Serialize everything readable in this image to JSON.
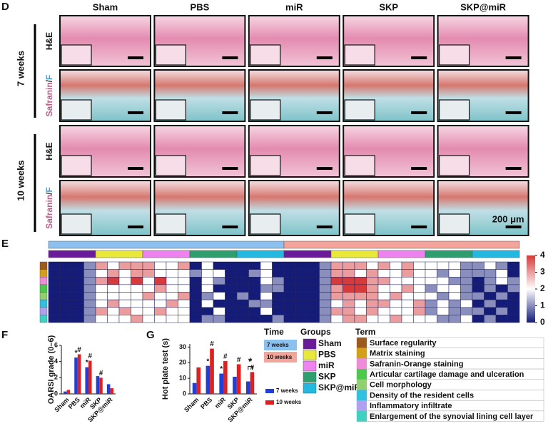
{
  "panel_d": {
    "label": "D",
    "columns": [
      "Sham",
      "PBS",
      "miR",
      "SKP",
      "SKP@miR"
    ],
    "times": [
      "7 weeks",
      "10 weeks"
    ],
    "stains": [
      {
        "parts": [
          "H&E"
        ],
        "colors": [
          "#111111"
        ]
      },
      {
        "parts": [
          "Safranin",
          "/",
          "F"
        ],
        "colors": [
          "#c25a86",
          "#333333",
          "#3fa3d9"
        ]
      }
    ],
    "scale_bar": "200 μm"
  },
  "chart_data": [
    {
      "type": "heatmap",
      "label": "E",
      "clim": [
        0,
        4
      ],
      "cticks": [
        0,
        1,
        2,
        3,
        4
      ],
      "colors": [
        "#141c78",
        "#ffffff",
        "#d63a3a"
      ],
      "time": {
        "title": "Time",
        "names": [
          "7 weeks",
          "10 weeks"
        ],
        "colors": [
          "#8cc1ef",
          "#f3a49b"
        ]
      },
      "groups": {
        "title": "Groups",
        "names": [
          "Sham",
          "PBS",
          "miR",
          "SKP",
          "SKP@miR"
        ],
        "colors": [
          "#6a1b9a",
          "#e8e83a",
          "#ee82ee",
          "#2e9e6e",
          "#22b8e0"
        ]
      },
      "terms": {
        "title": "Term",
        "names": [
          "Surface regularity",
          "Matrix staining",
          "Safranin-Orange staining",
          "Articular cartilage damage and ulceration",
          "Cell morphology",
          "Density of the resident cells",
          "Inflammatory infiltrate",
          "Enlargement of the synovial lining cell layer"
        ],
        "colors": [
          "#9c5a1c",
          "#d4a017",
          "#f08bd8",
          "#4cc94c",
          "#90d070",
          "#30c0e0",
          "#b0a0f0",
          "#40d0c0"
        ]
      },
      "values": [
        [
          0,
          0,
          0,
          1,
          3,
          2,
          3,
          3,
          3,
          2,
          2,
          3,
          0,
          2,
          0,
          0,
          0,
          0,
          2,
          0,
          0,
          0,
          0,
          1,
          3,
          3,
          3,
          2,
          3,
          2,
          3,
          2,
          2,
          2,
          2,
          1,
          1,
          2,
          1,
          0
        ],
        [
          0,
          0,
          0,
          1,
          2,
          3,
          2,
          3,
          3,
          2,
          2,
          2,
          1,
          2,
          2,
          0,
          0,
          1,
          2,
          0,
          0,
          0,
          0,
          1,
          3,
          3,
          2,
          3,
          2,
          2,
          3,
          2,
          2,
          1,
          2,
          1,
          1,
          1,
          2,
          0
        ],
        [
          0,
          0,
          0,
          1,
          3,
          4,
          2,
          4,
          2,
          4,
          2,
          2,
          0,
          2,
          1,
          0,
          0,
          0,
          2,
          1,
          0,
          0,
          0,
          1,
          4,
          4,
          4,
          3,
          3,
          2,
          2,
          2,
          2,
          2,
          1,
          1,
          0,
          1,
          2,
          1
        ],
        [
          0,
          0,
          0,
          1,
          2,
          2,
          2,
          2,
          2,
          3,
          2,
          2,
          0,
          2,
          0,
          0,
          0,
          0,
          1,
          1,
          0,
          0,
          0,
          1,
          3,
          4,
          4,
          3,
          2,
          2,
          3,
          2,
          1,
          2,
          2,
          1,
          0,
          1,
          0,
          1
        ],
        [
          0,
          0,
          0,
          1,
          2,
          2,
          2,
          2,
          3,
          2,
          2,
          3,
          0,
          1,
          2,
          0,
          1,
          0,
          2,
          0,
          0,
          0,
          0,
          1,
          3,
          3,
          3,
          3,
          2,
          3,
          2,
          2,
          2,
          1,
          2,
          1,
          1,
          0,
          1,
          0
        ],
        [
          0,
          0,
          0,
          1,
          2,
          3,
          2,
          2,
          2,
          2,
          3,
          2,
          0,
          2,
          0,
          0,
          0,
          1,
          1,
          0,
          0,
          0,
          0,
          1,
          2,
          3,
          2,
          3,
          3,
          2,
          2,
          3,
          1,
          2,
          1,
          2,
          0,
          1,
          0,
          0
        ],
        [
          0,
          0,
          0,
          1,
          3,
          2,
          3,
          2,
          2,
          3,
          2,
          2,
          0,
          0,
          2,
          0,
          0,
          0,
          2,
          0,
          0,
          0,
          0,
          1,
          3,
          3,
          2,
          3,
          2,
          2,
          2,
          3,
          1,
          2,
          1,
          1,
          1,
          0,
          1,
          0
        ],
        [
          0,
          0,
          0,
          1,
          2,
          2,
          2,
          3,
          2,
          2,
          2,
          2,
          0,
          1,
          1,
          0,
          0,
          0,
          0,
          1,
          0,
          0,
          0,
          1,
          2,
          3,
          3,
          2,
          2,
          3,
          2,
          2,
          2,
          1,
          1,
          2,
          0,
          1,
          0,
          0
        ]
      ]
    },
    {
      "type": "bar",
      "label": "F",
      "ylabel": "OARSI grade (0–6)",
      "categories": [
        "Sham",
        "PBS",
        "miR",
        "SKP",
        "SKP@miR"
      ],
      "series": [
        {
          "color": "#1f3fd6",
          "values": [
            0.3,
            4.5,
            3.3,
            2.2,
            1.2
          ],
          "marks": [
            null,
            "*",
            "*",
            null,
            null
          ]
        },
        {
          "color": "#e02020",
          "values": [
            0.5,
            4.9,
            4.1,
            2.0,
            0.7
          ],
          "marks": [
            null,
            "#",
            "#",
            "#",
            null
          ]
        }
      ],
      "ylim": [
        0,
        6
      ],
      "yticks": [
        0,
        2,
        4,
        6
      ]
    },
    {
      "type": "bar",
      "label": "G",
      "ylabel": "Hot plate test (s)",
      "categories": [
        "Sham",
        "PBS",
        "miR",
        "SKP",
        "SKP@miR"
      ],
      "series": [
        {
          "name": "7 weeks",
          "color": "#1f3fd6",
          "values": [
            7,
            18,
            13,
            11,
            8
          ],
          "marks": [
            null,
            "*",
            "*",
            null,
            null
          ]
        },
        {
          "name": "10 weeks",
          "color": "#e02020",
          "values": [
            17,
            29,
            21,
            19,
            14
          ],
          "marks": [
            null,
            "#",
            "#",
            "#",
            "#"
          ]
        }
      ],
      "bracket_label": "*",
      "ylim": [
        0,
        32
      ],
      "yticks": [
        0,
        10,
        20,
        30
      ]
    }
  ]
}
